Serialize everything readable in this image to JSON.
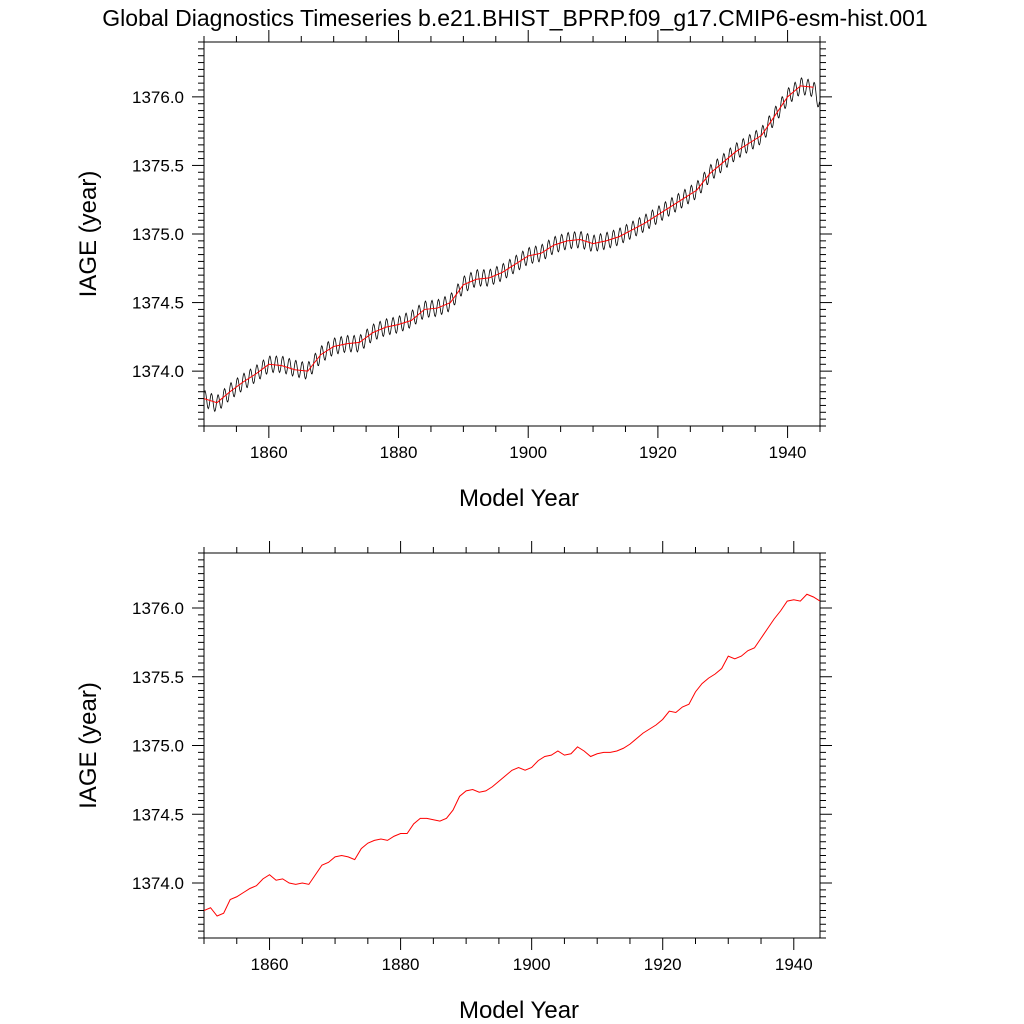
{
  "title": "Global Diagnostics Timeseries b.e21.BHIST_BPRP.f09_g17.CMIP6-esm-hist.001",
  "chart_data": [
    {
      "type": "line",
      "xlabel": "Model Year",
      "ylabel": "IAGE (year)",
      "xlim": [
        1850,
        1945
      ],
      "ylim": [
        1373.6,
        1376.4
      ],
      "x_ticks": [
        "1860",
        "1880",
        "1900",
        "1920",
        "1940"
      ],
      "y_ticks": [
        "1374.0",
        "1374.5",
        "1375.0",
        "1375.5",
        "1376.0"
      ],
      "seasonal_amplitude": 0.06,
      "series": [
        {
          "color": "#000000",
          "kind": "monthly",
          "x": [
            1850,
            1852,
            1854,
            1856,
            1858,
            1860,
            1862,
            1864,
            1866,
            1868,
            1870,
            1872,
            1874,
            1876,
            1878,
            1880,
            1882,
            1884,
            1886,
            1888,
            1890,
            1892,
            1894,
            1896,
            1898,
            1900,
            1902,
            1904,
            1906,
            1908,
            1910,
            1912,
            1914,
            1916,
            1918,
            1920,
            1922,
            1924,
            1926,
            1928,
            1930,
            1932,
            1934,
            1936,
            1938,
            1940,
            1942,
            1944,
            1945
          ],
          "y": [
            1373.8,
            1373.76,
            1373.85,
            1373.92,
            1373.98,
            1374.05,
            1374.05,
            1374.02,
            1374.0,
            1374.12,
            1374.18,
            1374.2,
            1374.2,
            1374.28,
            1374.32,
            1374.34,
            1374.38,
            1374.45,
            1374.46,
            1374.5,
            1374.63,
            1374.68,
            1374.68,
            1374.72,
            1374.78,
            1374.84,
            1374.86,
            1374.92,
            1374.95,
            1374.96,
            1374.93,
            1374.95,
            1374.98,
            1375.03,
            1375.08,
            1375.14,
            1375.2,
            1375.26,
            1375.32,
            1375.44,
            1375.52,
            1375.6,
            1375.66,
            1375.72,
            1375.86,
            1376.0,
            1376.08,
            1376.06,
            1375.95
          ]
        },
        {
          "color": "#ff0000",
          "kind": "annual",
          "x": [
            1850,
            1852,
            1854,
            1856,
            1858,
            1860,
            1862,
            1864,
            1866,
            1868,
            1870,
            1872,
            1874,
            1876,
            1878,
            1880,
            1882,
            1884,
            1886,
            1888,
            1890,
            1892,
            1894,
            1896,
            1898,
            1900,
            1902,
            1904,
            1906,
            1908,
            1910,
            1912,
            1914,
            1916,
            1918,
            1920,
            1922,
            1924,
            1926,
            1928,
            1930,
            1932,
            1934,
            1936,
            1938,
            1940,
            1942,
            1944
          ],
          "y": [
            1373.8,
            1373.77,
            1373.85,
            1373.92,
            1373.98,
            1374.05,
            1374.04,
            1374.01,
            1374.0,
            1374.12,
            1374.18,
            1374.2,
            1374.21,
            1374.28,
            1374.32,
            1374.34,
            1374.37,
            1374.45,
            1374.46,
            1374.5,
            1374.63,
            1374.67,
            1374.68,
            1374.72,
            1374.78,
            1374.84,
            1374.86,
            1374.92,
            1374.95,
            1374.96,
            1374.93,
            1374.95,
            1374.98,
            1375.03,
            1375.08,
            1375.14,
            1375.2,
            1375.26,
            1375.32,
            1375.44,
            1375.52,
            1375.6,
            1375.66,
            1375.72,
            1375.86,
            1376.0,
            1376.08,
            1376.07
          ]
        }
      ]
    },
    {
      "type": "line",
      "xlabel": "Model Year",
      "ylabel": "IAGE (year)",
      "xlim": [
        1850,
        1944
      ],
      "ylim": [
        1373.6,
        1376.4
      ],
      "x_ticks": [
        "1860",
        "1880",
        "1900",
        "1920",
        "1940"
      ],
      "y_ticks": [
        "1374.0",
        "1374.5",
        "1375.0",
        "1375.5",
        "1376.0"
      ],
      "series": [
        {
          "color": "#ff0000",
          "kind": "annual",
          "x": [
            1850,
            1851,
            1852,
            1853,
            1854,
            1855,
            1856,
            1857,
            1858,
            1859,
            1860,
            1861,
            1862,
            1863,
            1864,
            1865,
            1866,
            1867,
            1868,
            1869,
            1870,
            1871,
            1872,
            1873,
            1874,
            1875,
            1876,
            1877,
            1878,
            1879,
            1880,
            1881,
            1882,
            1883,
            1884,
            1885,
            1886,
            1887,
            1888,
            1889,
            1890,
            1891,
            1892,
            1893,
            1894,
            1895,
            1896,
            1897,
            1898,
            1899,
            1900,
            1901,
            1902,
            1903,
            1904,
            1905,
            1906,
            1907,
            1908,
            1909,
            1910,
            1911,
            1912,
            1913,
            1914,
            1915,
            1916,
            1917,
            1918,
            1919,
            1920,
            1921,
            1922,
            1923,
            1924,
            1925,
            1926,
            1927,
            1928,
            1929,
            1930,
            1931,
            1932,
            1933,
            1934,
            1935,
            1936,
            1937,
            1938,
            1939,
            1940,
            1941,
            1942,
            1943,
            1944
          ],
          "y": [
            1373.8,
            1373.82,
            1373.76,
            1373.78,
            1373.88,
            1373.9,
            1373.93,
            1373.96,
            1373.98,
            1374.03,
            1374.06,
            1374.02,
            1374.03,
            1374.0,
            1373.99,
            1374.0,
            1373.99,
            1374.06,
            1374.13,
            1374.15,
            1374.19,
            1374.2,
            1374.19,
            1374.17,
            1374.25,
            1374.29,
            1374.31,
            1374.32,
            1374.31,
            1374.34,
            1374.36,
            1374.36,
            1374.43,
            1374.47,
            1374.47,
            1374.46,
            1374.45,
            1374.47,
            1374.53,
            1374.63,
            1374.67,
            1374.68,
            1374.66,
            1374.67,
            1374.7,
            1374.74,
            1374.78,
            1374.82,
            1374.84,
            1374.82,
            1374.84,
            1374.89,
            1374.92,
            1374.93,
            1374.96,
            1374.93,
            1374.94,
            1374.99,
            1374.96,
            1374.92,
            1374.94,
            1374.95,
            1374.95,
            1374.96,
            1374.98,
            1375.01,
            1375.05,
            1375.09,
            1375.12,
            1375.15,
            1375.19,
            1375.25,
            1375.24,
            1375.28,
            1375.3,
            1375.39,
            1375.45,
            1375.49,
            1375.52,
            1375.56,
            1375.65,
            1375.63,
            1375.65,
            1375.69,
            1375.71,
            1375.78,
            1375.85,
            1375.92,
            1375.98,
            1376.05,
            1376.06,
            1376.05,
            1376.1,
            1376.08,
            1376.05
          ]
        }
      ]
    }
  ]
}
